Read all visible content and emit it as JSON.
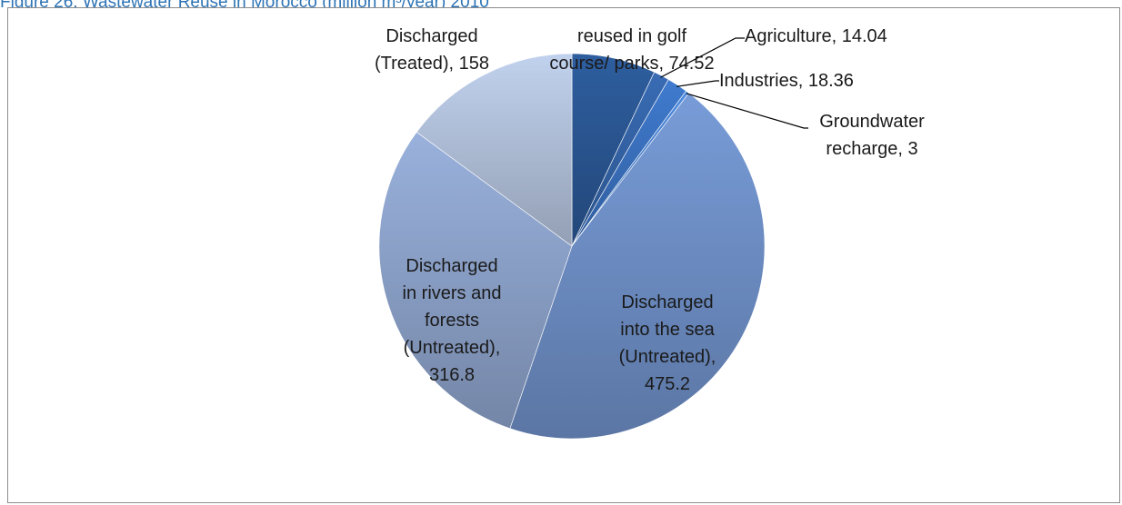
{
  "figure": {
    "title": "Figure 26: Wastewater Reuse in Morocco (million m³/year) 2010"
  },
  "chart_data": {
    "type": "pie",
    "title": "",
    "slices": [
      {
        "name": "reused in golf course/ parks",
        "value": 74.52,
        "label_lines": [
          "reused in golf",
          "course/ parks, 74.52"
        ],
        "color": "#2b5793"
      },
      {
        "name": "Agriculture",
        "value": 14.04,
        "label_lines": [
          "Agriculture, 14.04"
        ],
        "color": "#3564a8"
      },
      {
        "name": "Industries",
        "value": 18.36,
        "label_lines": [
          "Industries, 18.36"
        ],
        "color": "#3b72c0"
      },
      {
        "name": "Groundwater recharge",
        "value": 3,
        "label_lines": [
          "Groundwater",
          "recharge, 3"
        ],
        "color": "#4a83cf"
      },
      {
        "name": "Discharged into the sea (Untreated)",
        "value": 475.2,
        "label_lines": [
          "Discharged",
          "into the sea",
          "(Untreated),",
          "475.2"
        ],
        "color": "#6f90c8"
      },
      {
        "name": "Discharged in rivers and forests (Untreated)",
        "value": 316.8,
        "label_lines": [
          "Discharged",
          "in rivers and",
          "forests",
          "(Untreated),",
          "316.8"
        ],
        "color": "#8ea4cc"
      },
      {
        "name": "Discharged (Treated)",
        "value": 158,
        "label_lines": [
          "Discharged",
          "(Treated), 158"
        ],
        "color": "#b3c2dc"
      }
    ],
    "start_angle": "12 o'clock",
    "direction": "clockwise",
    "legend": "none"
  }
}
